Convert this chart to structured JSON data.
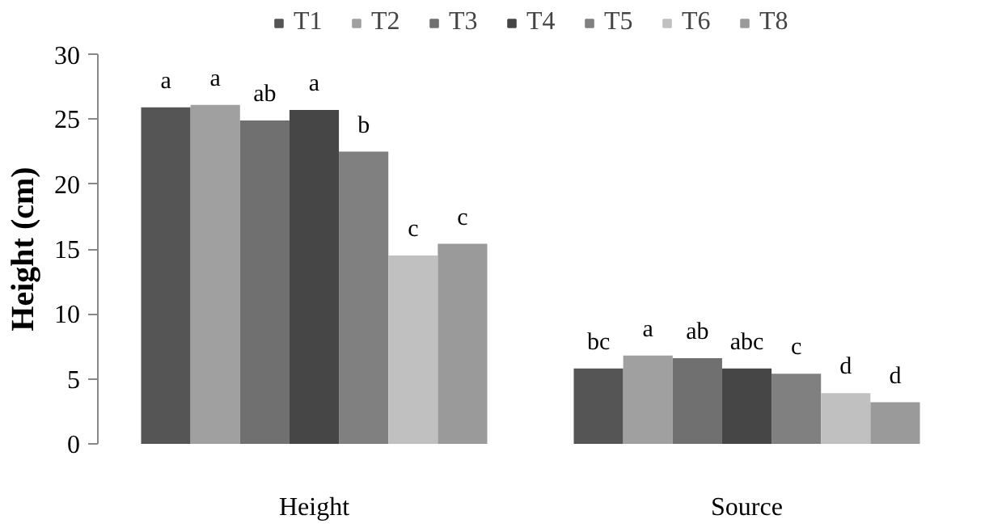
{
  "chart_data": {
    "type": "bar",
    "ylabel": "Height (cm)",
    "categories": [
      "Height",
      "Source"
    ],
    "ylim": [
      0,
      30
    ],
    "yticks": [
      0,
      5,
      10,
      15,
      20,
      25,
      30
    ],
    "grid": false,
    "legend": "top",
    "series": [
      {
        "name": "T1",
        "color": "#555555",
        "values": [
          25.9,
          5.8
        ],
        "value_labels": [
          "a",
          "bc"
        ]
      },
      {
        "name": "T2",
        "color": "#a0a0a0",
        "values": [
          26.1,
          6.8
        ],
        "value_labels": [
          "a",
          "a"
        ]
      },
      {
        "name": "T3",
        "color": "#707070",
        "values": [
          24.9,
          6.6
        ],
        "value_labels": [
          "ab",
          "ab"
        ]
      },
      {
        "name": "T4",
        "color": "#464646",
        "values": [
          25.7,
          5.8
        ],
        "value_labels": [
          "a",
          "abc"
        ]
      },
      {
        "name": "T5",
        "color": "#808080",
        "values": [
          22.5,
          5.4
        ],
        "value_labels": [
          "b",
          "c"
        ]
      },
      {
        "name": "T6",
        "color": "#c0c0c0",
        "values": [
          14.5,
          3.9
        ],
        "value_labels": [
          "c",
          "d"
        ]
      },
      {
        "name": "T8",
        "color": "#9a9a9a",
        "values": [
          15.4,
          3.2
        ],
        "value_labels": [
          "c",
          "d"
        ]
      }
    ]
  }
}
